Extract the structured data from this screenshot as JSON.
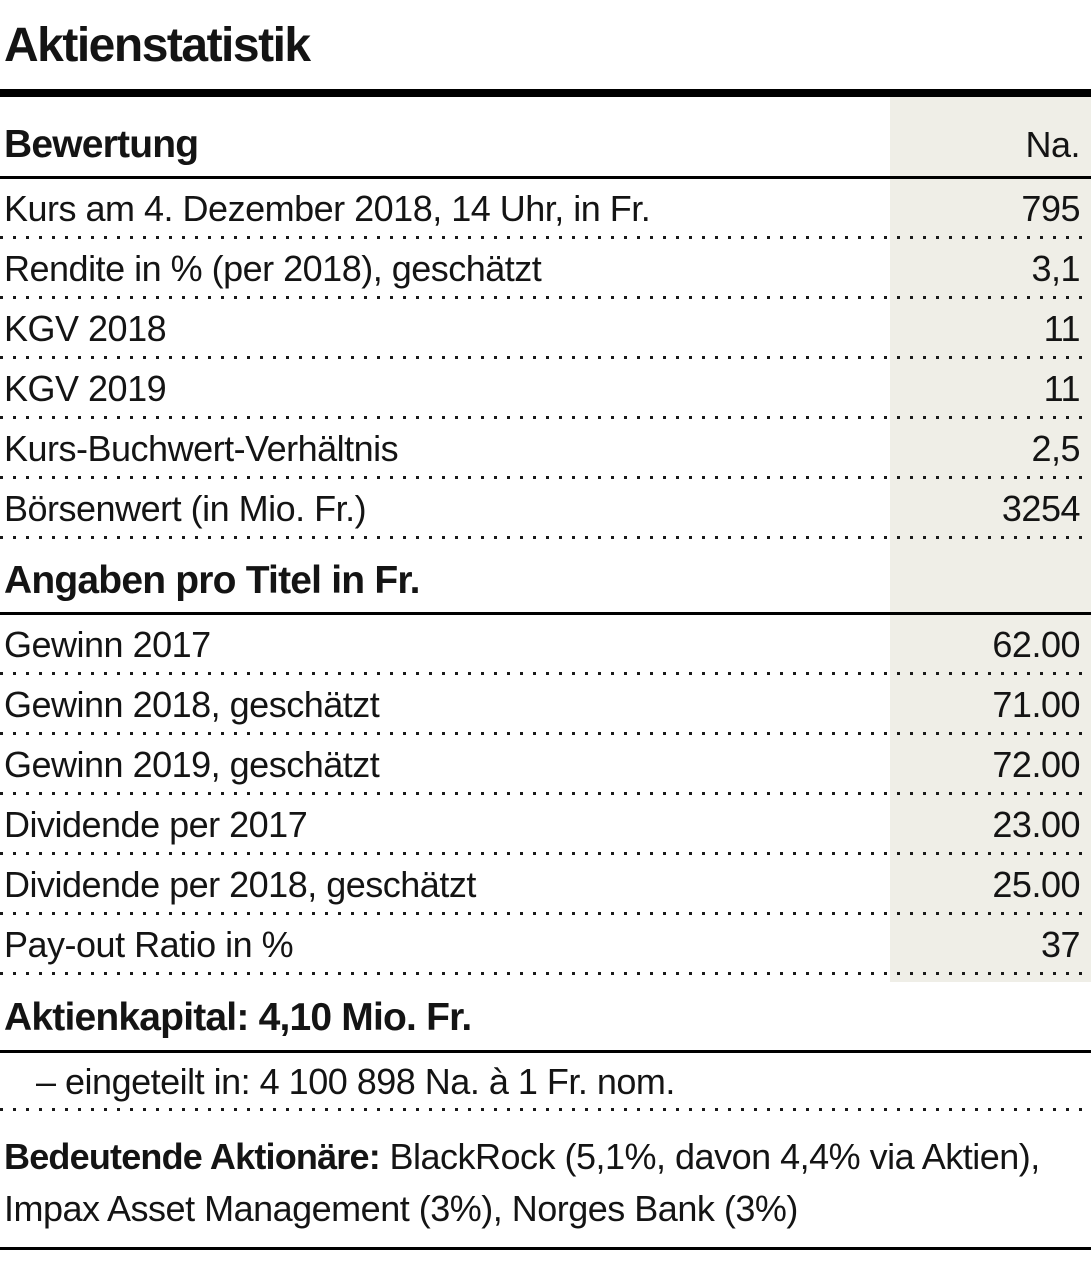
{
  "title": "Aktienstatistik",
  "table": {
    "sections": [
      {
        "header": "Bewertung",
        "header_value": "Na.",
        "rows": [
          {
            "label": "Kurs am 4. Dezember 2018, 14 Uhr, in Fr.",
            "value": "795"
          },
          {
            "label": "Rendite in % (per 2018), geschätzt",
            "value": "3,1"
          },
          {
            "label": "KGV 2018",
            "value": "11"
          },
          {
            "label": "KGV 2019",
            "value": "11"
          },
          {
            "label": "Kurs-Buchwert-Verhältnis",
            "value": "2,5"
          },
          {
            "label": "Börsenwert (in Mio. Fr.)",
            "value": "3254"
          }
        ]
      },
      {
        "header": "Angaben pro Titel in Fr.",
        "header_value": "",
        "rows": [
          {
            "label": "Gewinn 2017",
            "value": "62.00"
          },
          {
            "label": "Gewinn 2018, geschätzt",
            "value": "71.00"
          },
          {
            "label": "Gewinn 2019, geschätzt",
            "value": "72.00"
          },
          {
            "label": "Dividende per 2017",
            "value": "23.00"
          },
          {
            "label": "Dividende per 2018, geschätzt",
            "value": "25.00"
          },
          {
            "label": "Pay-out Ratio in %",
            "value": "37"
          }
        ]
      }
    ]
  },
  "capital": {
    "header": "Aktienkapital: 4,10 Mio. Fr.",
    "detail": "– eingeteilt in: 4 100 898 Na. à 1 Fr. nom."
  },
  "shareholders": {
    "lead": "Bedeutende Aktionäre:",
    "text": " BlackRock (5,1%, davon 4,4% via Aktien), Impax Asset Management (3%), Norges Bank (3%)"
  },
  "colors": {
    "shade_column": "#efeee7",
    "text": "#141414",
    "rule": "#000000"
  }
}
